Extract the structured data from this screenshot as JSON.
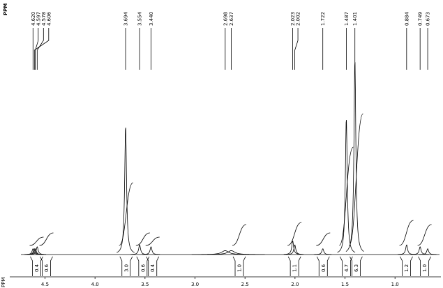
{
  "header_label": "PPM",
  "chart_data": {
    "type": "nmr",
    "x_label": "PPM",
    "xlim": [
      4.95,
      0.52
    ],
    "xticks": [
      4.5,
      {
        "value": 4,
        "label": "4.0"
      },
      3.5,
      {
        "value": 3,
        "label": "3.0"
      },
      2.5,
      {
        "value": 2,
        "label": "2.0"
      },
      1.5,
      {
        "value": 1,
        "label": "1.0"
      }
    ],
    "peaks": {
      "ppm": [
        4.62,
        4.597,
        4.578,
        4.606,
        3.694,
        3.554,
        3.44,
        2.698,
        2.637,
        2.023,
        2.002,
        1.722,
        1.487,
        1.401,
        0.884,
        0.749,
        0.673
      ],
      "value_labels": [
        "4.620",
        "4.597",
        "4.578",
        "4.606",
        "3.694",
        "3.554",
        "3.440",
        "2.698",
        "2.637",
        "2.023",
        "2.002",
        "1.722",
        "1.487",
        "1.401",
        "0.884",
        "0.749",
        "0.673"
      ],
      "heights": [
        3,
        3,
        4,
        3,
        66,
        5,
        4,
        2,
        2,
        7,
        5,
        3,
        70,
        100,
        5,
        4,
        3
      ]
    },
    "integrals": {
      "ppm": [
        4.584,
        4.486,
        3.689,
        3.521,
        3.424,
        2.557,
        2.005,
        1.718,
        1.487,
        1.389,
        0.886,
        0.704
      ],
      "values": [
        0.4,
        0.6,
        3,
        0.6,
        0.4,
        1,
        1.1,
        0.6,
        4.7,
        6.3,
        1.2,
        1
      ],
      "value_labels": [
        "0.4",
        "0.6",
        "3.0",
        "0.6",
        "0.4",
        "1.0",
        "1.1",
        "0.6",
        "4.7",
        "6.3",
        "1.2",
        "1.0"
      ]
    }
  }
}
